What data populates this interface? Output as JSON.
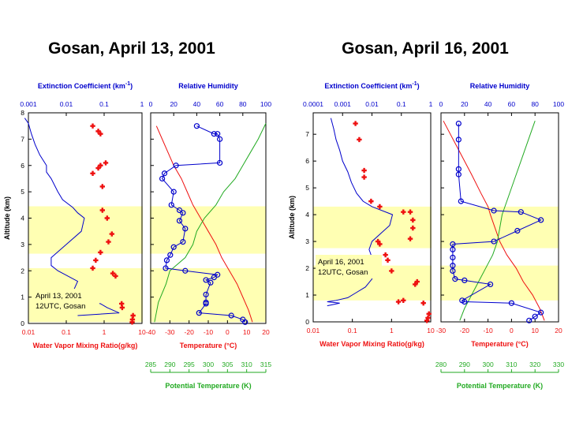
{
  "colors": {
    "extinction": "#0000cc",
    "mixing": "#ee1111",
    "rh": "#0000cc",
    "temperature": "#ee1111",
    "theta": "#22aa22",
    "band": "#ffffb3"
  },
  "chart_data": [
    {
      "type": "line",
      "title": "Gosan,  April 13, 2001",
      "annotation": [
        "April 13, 2001",
        "12UTC, Gosan"
      ],
      "ylabel": "Altitude (km)",
      "ylim": [
        0,
        8
      ],
      "yticks": [
        "0",
        "1",
        "2",
        "3",
        "4",
        "5",
        "6",
        "7",
        "8"
      ],
      "aerosol_bands_km": [
        [
          0.05,
          2.1
        ],
        [
          2.65,
          4.45
        ]
      ],
      "left_panel": {
        "top_axis": {
          "label": "Extinction Coefficient (km-1)",
          "scale": "log",
          "lim": [
            0.001,
            1
          ],
          "ticks": [
            "0.001",
            "0.01",
            "0.1",
            "1"
          ]
        },
        "bottom_axis": {
          "label": "Water Vapor Mixing Ratio(g/kg)",
          "scale": "log",
          "lim": [
            0.01,
            10
          ],
          "ticks": [
            "0.01",
            "0.1",
            "1",
            "10"
          ]
        },
        "extinction": [
          [
            0.3,
            0.02
          ],
          [
            0.4,
            0.25
          ],
          [
            0.6,
            0.12
          ],
          [
            0.75,
            0.08
          ],
          [
            0.8,
            0.05
          ],
          [
            1,
            0.02
          ],
          [
            1.2,
            0.015
          ],
          [
            1.6,
            0.02
          ],
          [
            2,
            0.006
          ],
          [
            2.2,
            0.004
          ],
          [
            2.5,
            0.004
          ],
          [
            3,
            0.01
          ],
          [
            3.5,
            0.025
          ],
          [
            4,
            0.03
          ],
          [
            4.2,
            0.02
          ],
          [
            4.4,
            0.015
          ],
          [
            4.7,
            0.008
          ],
          [
            5,
            0.006
          ],
          [
            5.5,
            0.004
          ],
          [
            5.75,
            0.003
          ],
          [
            6,
            0.003
          ],
          [
            6.4,
            0.002
          ],
          [
            6.8,
            0.0015
          ],
          [
            7.2,
            0.0012
          ],
          [
            7.6,
            0.001
          ],
          [
            7.8,
            0.0008
          ]
        ],
        "mixing_ratio": [
          [
            0.05,
            5.5
          ],
          [
            0.15,
            5.6
          ],
          [
            0.3,
            5.8
          ],
          [
            0.6,
            3.0
          ],
          [
            0.75,
            2.9
          ],
          [
            1.8,
            2.0
          ],
          [
            1.9,
            1.7
          ],
          [
            2.1,
            0.5
          ],
          [
            2.4,
            0.6
          ],
          [
            2.7,
            0.8
          ],
          [
            3.1,
            1.3
          ],
          [
            3.4,
            1.6
          ],
          [
            4.0,
            1.2
          ],
          [
            4.3,
            0.9
          ],
          [
            5.2,
            0.9
          ],
          [
            5.7,
            0.5
          ],
          [
            5.9,
            0.7
          ],
          [
            6.0,
            0.8
          ],
          [
            6.1,
            1.1
          ],
          [
            7.2,
            0.8
          ],
          [
            7.3,
            0.7
          ],
          [
            7.5,
            0.5
          ]
        ]
      },
      "right_panel": {
        "top_axis": {
          "label": "Relative Humidity",
          "lim": [
            0,
            100
          ],
          "ticks": [
            "0",
            "20",
            "40",
            "60",
            "80",
            "100"
          ]
        },
        "bottom_axis": {
          "label": "Temperature (°C)",
          "lim": [
            -40,
            20
          ],
          "ticks": [
            "-40",
            "-30",
            "-20",
            "-10",
            "0",
            "10",
            "20"
          ]
        },
        "theta_axis": {
          "label": "Potential Temperature (K)",
          "lim": [
            285,
            315
          ],
          "ticks": [
            "285",
            "290",
            "295",
            "300",
            "305",
            "310",
            "315"
          ]
        },
        "rh": [
          [
            0.05,
            82
          ],
          [
            0.15,
            80
          ],
          [
            0.3,
            70
          ],
          [
            0.4,
            42
          ],
          [
            0.75,
            48
          ],
          [
            0.8,
            48
          ],
          [
            1.1,
            48
          ],
          [
            1.55,
            52
          ],
          [
            1.65,
            48
          ],
          [
            1.75,
            55
          ],
          [
            1.85,
            58
          ],
          [
            2.0,
            30
          ],
          [
            2.1,
            13
          ],
          [
            2.4,
            14
          ],
          [
            2.6,
            17
          ],
          [
            2.9,
            20
          ],
          [
            3.1,
            28
          ],
          [
            3.6,
            30
          ],
          [
            3.9,
            25
          ],
          [
            4.2,
            28
          ],
          [
            4.3,
            25
          ],
          [
            4.5,
            18
          ],
          [
            5.0,
            20
          ],
          [
            5.5,
            10
          ],
          [
            5.7,
            12
          ],
          [
            6.0,
            22
          ],
          [
            6.1,
            60
          ],
          [
            7.0,
            60
          ],
          [
            7.2,
            58
          ],
          [
            7.2,
            55
          ],
          [
            7.5,
            40
          ]
        ],
        "temperature": [
          [
            0.05,
            13
          ],
          [
            0.5,
            11
          ],
          [
            1.0,
            8
          ],
          [
            1.5,
            5
          ],
          [
            2.0,
            1
          ],
          [
            2.5,
            -3
          ],
          [
            3.0,
            -6
          ],
          [
            3.5,
            -10
          ],
          [
            4.0,
            -14
          ],
          [
            4.5,
            -18
          ],
          [
            5.0,
            -21
          ],
          [
            5.5,
            -24
          ],
          [
            6.0,
            -28
          ],
          [
            6.5,
            -31
          ],
          [
            7.0,
            -34
          ],
          [
            7.5,
            -37
          ]
        ],
        "potential_temperature": [
          [
            0.05,
            286
          ],
          [
            0.8,
            287
          ],
          [
            1.5,
            289
          ],
          [
            2.0,
            290
          ],
          [
            2.5,
            294
          ],
          [
            3.0,
            296
          ],
          [
            3.5,
            297
          ],
          [
            4.0,
            299
          ],
          [
            4.5,
            302
          ],
          [
            5.0,
            304
          ],
          [
            5.5,
            307
          ],
          [
            6.0,
            309
          ],
          [
            6.5,
            311
          ],
          [
            7.0,
            313
          ],
          [
            7.6,
            315
          ]
        ]
      }
    },
    {
      "type": "line",
      "title": "Gosan,  April 16, 2001",
      "annotation": [
        "April 16, 2001",
        "12UTC, Gosan"
      ],
      "ylabel": "Altitude (km)",
      "ylim": [
        0,
        7.8
      ],
      "yticks": [
        "0",
        "1",
        "2",
        "3",
        "4",
        "5",
        "6",
        "7"
      ],
      "aerosol_bands_km": [
        [
          0.8,
          2.1
        ],
        [
          2.75,
          4.3
        ]
      ],
      "left_panel": {
        "top_axis": {
          "label": "Extinction Coefficient (km-1)",
          "scale": "log",
          "lim": [
            0.0001,
            1
          ],
          "ticks": [
            "0.0001",
            "0.001",
            "0.01",
            "0.1",
            "1"
          ]
        },
        "bottom_axis": {
          "label": "Water Vapor Mixing Ratio(g/kg)",
          "scale": "log",
          "lim": [
            0.01,
            10
          ],
          "ticks": [
            "0.01",
            "0.1",
            "1",
            "10"
          ]
        },
        "extinction": [
          [
            0.6,
            0.0003
          ],
          [
            0.7,
            0.0008
          ],
          [
            0.75,
            0.0003
          ],
          [
            0.8,
            0.0006
          ],
          [
            0.9,
            0.0015
          ],
          [
            1.1,
            0.003
          ],
          [
            1.3,
            0.006
          ],
          [
            1.6,
            0.01
          ],
          [
            2.0,
            0.012
          ],
          [
            2.4,
            0.01
          ],
          [
            2.7,
            0.008
          ],
          [
            3.0,
            0.01
          ],
          [
            3.3,
            0.02
          ],
          [
            3.6,
            0.04
          ],
          [
            4.0,
            0.05
          ],
          [
            4.3,
            0.01
          ],
          [
            4.5,
            0.005
          ],
          [
            4.8,
            0.003
          ],
          [
            5.2,
            0.002
          ],
          [
            5.6,
            0.0015
          ],
          [
            6.0,
            0.001
          ],
          [
            6.4,
            0.0008
          ],
          [
            6.8,
            0.0006
          ],
          [
            7.2,
            0.0005
          ],
          [
            7.6,
            0.0004
          ]
        ],
        "mixing_ratio": [
          [
            0.05,
            8.0
          ],
          [
            0.15,
            8.5
          ],
          [
            0.3,
            9.0
          ],
          [
            0.7,
            6.5
          ],
          [
            0.75,
            1.5
          ],
          [
            0.8,
            2.0
          ],
          [
            1.4,
            4.0
          ],
          [
            1.5,
            4.5
          ],
          [
            1.9,
            1.0
          ],
          [
            2.3,
            0.8
          ],
          [
            2.5,
            0.7
          ],
          [
            2.9,
            0.5
          ],
          [
            3.0,
            0.45
          ],
          [
            3.1,
            3.0
          ],
          [
            3.5,
            3.5
          ],
          [
            3.8,
            3.5
          ],
          [
            4.1,
            2.0
          ],
          [
            4.1,
            3.0
          ],
          [
            4.3,
            0.5
          ],
          [
            4.5,
            0.3
          ],
          [
            5.4,
            0.2
          ],
          [
            5.65,
            0.2
          ],
          [
            6.8,
            0.15
          ],
          [
            7.4,
            0.12
          ]
        ]
      },
      "right_panel": {
        "top_axis": {
          "label": "Relative Humidity",
          "lim": [
            0,
            100
          ],
          "ticks": [
            "0",
            "20",
            "40",
            "60",
            "80",
            "100"
          ]
        },
        "bottom_axis": {
          "label": "Temperature (°C)",
          "lim": [
            -30,
            20
          ],
          "ticks": [
            "-30",
            "-20",
            "-10",
            "0",
            "10",
            "20"
          ]
        },
        "theta_axis": {
          "label": "Potential Temperature (K)",
          "lim": [
            280,
            330
          ],
          "ticks": [
            "280",
            "290",
            "300",
            "310",
            "320",
            "330"
          ]
        },
        "rh": [
          [
            0.05,
            75
          ],
          [
            0.2,
            80
          ],
          [
            0.35,
            85
          ],
          [
            0.7,
            60
          ],
          [
            0.75,
            20
          ],
          [
            0.8,
            18
          ],
          [
            1.4,
            42
          ],
          [
            1.55,
            20
          ],
          [
            1.6,
            12
          ],
          [
            1.9,
            10
          ],
          [
            2.1,
            10
          ],
          [
            2.4,
            10
          ],
          [
            2.7,
            10
          ],
          [
            2.9,
            10
          ],
          [
            3.0,
            45
          ],
          [
            3.4,
            65
          ],
          [
            3.8,
            85
          ],
          [
            4.1,
            68
          ],
          [
            4.15,
            45
          ],
          [
            4.5,
            17
          ],
          [
            5.5,
            15
          ],
          [
            5.7,
            15
          ],
          [
            6.8,
            15
          ],
          [
            7.4,
            15
          ]
        ],
        "temperature": [
          [
            0.05,
            14
          ],
          [
            0.5,
            12
          ],
          [
            1.0,
            9
          ],
          [
            1.5,
            5
          ],
          [
            2.0,
            2
          ],
          [
            2.5,
            -2
          ],
          [
            3.0,
            -5
          ],
          [
            3.5,
            -7
          ],
          [
            4.0,
            -9
          ],
          [
            4.3,
            -10
          ],
          [
            4.8,
            -13
          ],
          [
            5.5,
            -17
          ],
          [
            6.0,
            -20
          ],
          [
            6.5,
            -23
          ],
          [
            7.0,
            -26
          ],
          [
            7.5,
            -29
          ]
        ],
        "potential_temperature": [
          [
            0.05,
            288
          ],
          [
            0.5,
            290
          ],
          [
            1.0,
            293
          ],
          [
            1.5,
            296
          ],
          [
            2.0,
            299
          ],
          [
            2.5,
            302
          ],
          [
            3.0,
            304
          ],
          [
            3.5,
            305
          ],
          [
            4.0,
            306
          ],
          [
            4.5,
            308
          ],
          [
            5.0,
            310
          ],
          [
            5.5,
            312
          ],
          [
            6.0,
            314
          ],
          [
            6.5,
            316
          ],
          [
            7.0,
            318
          ],
          [
            7.5,
            320
          ]
        ]
      }
    }
  ]
}
